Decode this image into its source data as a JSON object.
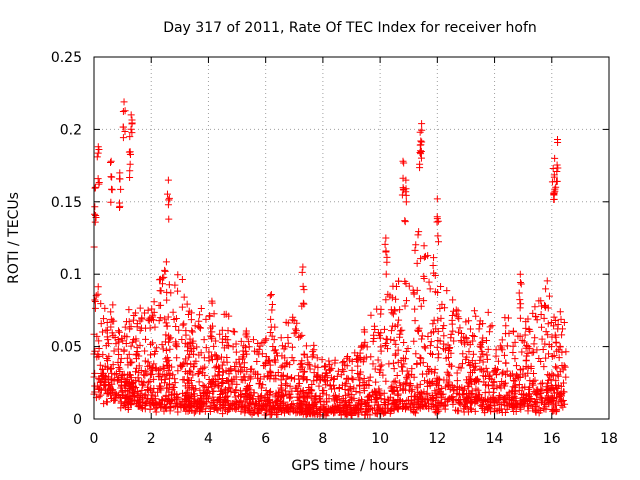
{
  "chart_data": {
    "type": "scatter",
    "title": "Day 317 of 2011, Rate Of TEC Index for receiver hofn",
    "xlabel": "GPS time / hours",
    "ylabel": "ROTI / TECUs",
    "xlim": [
      0,
      18
    ],
    "ylim": [
      0,
      0.25
    ],
    "x_ticks": [
      "0",
      "2",
      "4",
      "6",
      "8",
      "10",
      "12",
      "14",
      "16",
      "18"
    ],
    "y_ticks": [
      "0",
      "0.05",
      "0.1",
      "0.15",
      "0.2",
      "0.25"
    ],
    "grid": true,
    "marker": "+",
    "color": "#ff0000",
    "x_range_data": [
      0,
      16.5
    ],
    "series": [
      {
        "name": "ROTI",
        "profile": [
          {
            "x": 0.0,
            "base": 0.03,
            "spread": 0.09
          },
          {
            "x": 0.5,
            "base": 0.02,
            "spread": 0.06
          },
          {
            "x": 1.0,
            "base": 0.015,
            "spread": 0.05
          },
          {
            "x": 1.5,
            "base": 0.012,
            "spread": 0.07
          },
          {
            "x": 2.0,
            "base": 0.01,
            "spread": 0.07
          },
          {
            "x": 2.5,
            "base": 0.01,
            "spread": 0.1
          },
          {
            "x": 3.0,
            "base": 0.01,
            "spread": 0.09
          },
          {
            "x": 3.5,
            "base": 0.01,
            "spread": 0.07
          },
          {
            "x": 4.0,
            "base": 0.01,
            "spread": 0.07
          },
          {
            "x": 5.0,
            "base": 0.008,
            "spread": 0.06
          },
          {
            "x": 6.0,
            "base": 0.006,
            "spread": 0.05
          },
          {
            "x": 7.0,
            "base": 0.006,
            "spread": 0.07
          },
          {
            "x": 8.0,
            "base": 0.005,
            "spread": 0.035
          },
          {
            "x": 9.0,
            "base": 0.005,
            "spread": 0.04
          },
          {
            "x": 10.0,
            "base": 0.008,
            "spread": 0.08
          },
          {
            "x": 11.0,
            "base": 0.01,
            "spread": 0.1
          },
          {
            "x": 11.5,
            "base": 0.01,
            "spread": 0.13
          },
          {
            "x": 12.0,
            "base": 0.01,
            "spread": 0.09
          },
          {
            "x": 13.0,
            "base": 0.01,
            "spread": 0.06
          },
          {
            "x": 14.0,
            "base": 0.01,
            "spread": 0.065
          },
          {
            "x": 15.0,
            "base": 0.01,
            "spread": 0.06
          },
          {
            "x": 16.0,
            "base": 0.01,
            "spread": 0.09
          },
          {
            "x": 16.5,
            "base": 0.01,
            "spread": 0.06
          }
        ],
        "peaks": [
          {
            "x": 1.05,
            "y": 0.219
          },
          {
            "x": 1.3,
            "y": 0.21
          },
          {
            "x": 1.25,
            "y": 0.195
          },
          {
            "x": 0.05,
            "y": 0.16
          },
          {
            "x": 0.15,
            "y": 0.188
          },
          {
            "x": 0.6,
            "y": 0.178
          },
          {
            "x": 0.9,
            "y": 0.17
          },
          {
            "x": 2.6,
            "y": 0.165
          },
          {
            "x": 11.45,
            "y": 0.204
          },
          {
            "x": 11.4,
            "y": 0.198
          },
          {
            "x": 10.8,
            "y": 0.178
          },
          {
            "x": 10.9,
            "y": 0.165
          },
          {
            "x": 12.0,
            "y": 0.152
          },
          {
            "x": 16.2,
            "y": 0.193
          },
          {
            "x": 16.1,
            "y": 0.18
          },
          {
            "x": 16.05,
            "y": 0.173
          },
          {
            "x": 7.3,
            "y": 0.105
          },
          {
            "x": 6.2,
            "y": 0.086
          },
          {
            "x": 10.2,
            "y": 0.125
          },
          {
            "x": 14.9,
            "y": 0.1
          }
        ]
      }
    ]
  }
}
